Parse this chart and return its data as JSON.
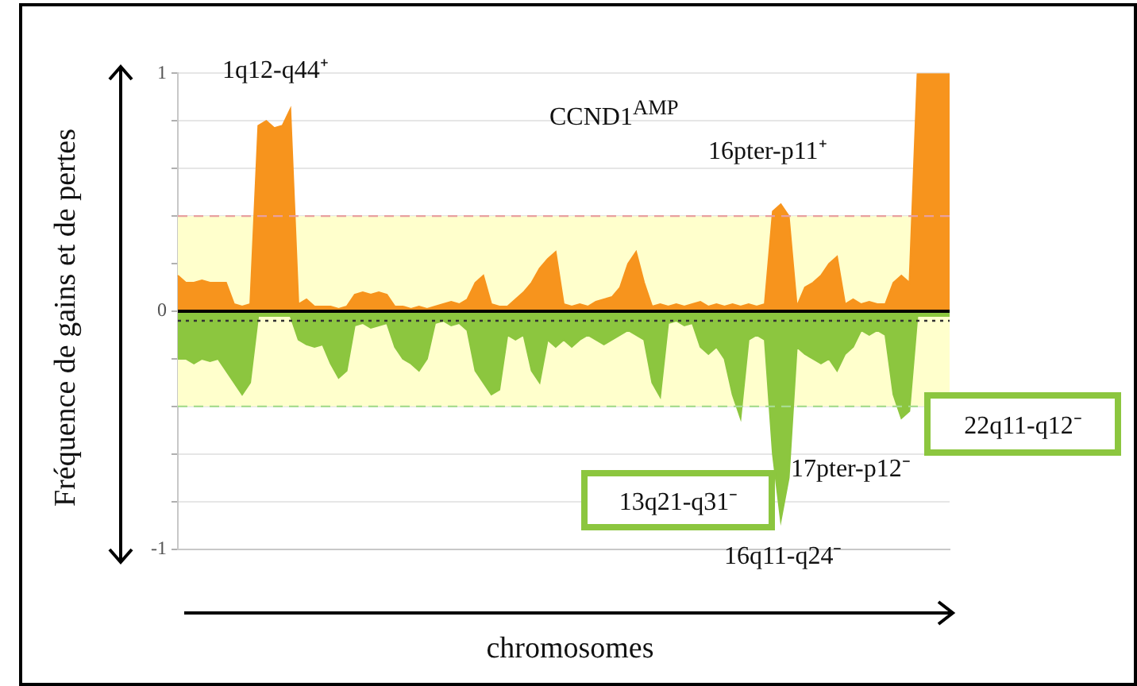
{
  "chart_data": {
    "type": "area",
    "ylabel": "Fréquence de gains et de pertes",
    "xlabel": "chromosomes",
    "categories": [
      null,
      null,
      null,
      null,
      null,
      null,
      null,
      null,
      null,
      null,
      null,
      null,
      null,
      null,
      null,
      null,
      null,
      null,
      null,
      null,
      null,
      null,
      null,
      null,
      null,
      null,
      null,
      null,
      null,
      null,
      null,
      null,
      null,
      null,
      null,
      null,
      null,
      null,
      null,
      null,
      null,
      null,
      null,
      null,
      null,
      null,
      null,
      null,
      null,
      null,
      null,
      null,
      null,
      null,
      null,
      null,
      null,
      null,
      null,
      null,
      null,
      null,
      null,
      null,
      null,
      null,
      null,
      null,
      null,
      null,
      null,
      null,
      null,
      null,
      null,
      null,
      null,
      null,
      null,
      null,
      null,
      null,
      null,
      null,
      null,
      null,
      null,
      null,
      null,
      null,
      null,
      null,
      null,
      null,
      null,
      null,
      null
    ],
    "series": [
      {
        "color": "#f7941d",
        "values": [
          0.15,
          0.12,
          0.12,
          0.13,
          0.12,
          0.12,
          0.12,
          0.03,
          0.02,
          0.03,
          0.78,
          0.8,
          0.77,
          0.78,
          0.85,
          0.03,
          0.05,
          0.02,
          0.02,
          0.02,
          0.01,
          0.02,
          0.07,
          0.08,
          0.07,
          0.08,
          0.07,
          0.02,
          0.02,
          0.01,
          0.02,
          0.01,
          0.02,
          0.03,
          0.04,
          0.03,
          0.05,
          0.12,
          0.15,
          0.03,
          0.02,
          0.02,
          0.05,
          0.08,
          0.12,
          0.18,
          0.22,
          0.25,
          0.03,
          0.02,
          0.03,
          0.02,
          0.04,
          0.05,
          0.06,
          0.1,
          0.2,
          0.25,
          0.12,
          0.02,
          0.03,
          0.02,
          0.03,
          0.02,
          0.03,
          0.04,
          0.02,
          0.03,
          0.02,
          0.03,
          0.02,
          0.03,
          0.02,
          0.03,
          0.42,
          0.45,
          0.4,
          0.02,
          0.1,
          0.12,
          0.15,
          0.2,
          0.23,
          0.03,
          0.05,
          0.03,
          0.04,
          0.03,
          0.03,
          0.12,
          0.15,
          0.12,
          1,
          1,
          1,
          1,
          1
        ]
      },
      {
        "color": "#8cc63f",
        "values": [
          -0.2,
          -0.2,
          -0.22,
          -0.2,
          -0.21,
          -0.2,
          -0.25,
          -0.3,
          -0.35,
          -0.3,
          -0.02,
          -0.02,
          -0.02,
          -0.02,
          -0.02,
          -0.12,
          -0.14,
          -0.15,
          -0.14,
          -0.22,
          -0.28,
          -0.25,
          -0.06,
          -0.05,
          -0.07,
          -0.06,
          -0.05,
          -0.15,
          -0.2,
          -0.22,
          -0.25,
          -0.2,
          -0.05,
          -0.04,
          -0.06,
          -0.05,
          -0.08,
          -0.25,
          -0.3,
          -0.35,
          -0.33,
          -0.1,
          -0.12,
          -0.1,
          -0.25,
          -0.3,
          -0.12,
          -0.15,
          -0.12,
          -0.15,
          -0.12,
          -0.1,
          -0.12,
          -0.14,
          -0.12,
          -0.1,
          -0.08,
          -0.1,
          -0.12,
          -0.3,
          -0.36,
          -0.05,
          -0.04,
          -0.06,
          -0.05,
          -0.15,
          -0.18,
          -0.15,
          -0.2,
          -0.35,
          -0.45,
          -0.12,
          -0.1,
          -0.12,
          -0.6,
          -0.88,
          -0.7,
          -0.15,
          -0.18,
          -0.2,
          -0.22,
          -0.2,
          -0.25,
          -0.18,
          -0.15,
          -0.08,
          -0.1,
          -0.08,
          -0.1,
          -0.35,
          -0.45,
          -0.42,
          -0.02,
          -0.02,
          -0.02,
          -0.02,
          -0.02
        ]
      }
    ],
    "ylim": [
      -1,
      1
    ],
    "yticks": [
      -1,
      {
        "value": -0.8,
        "label": null
      },
      {
        "value": -0.6,
        "label": null
      },
      {
        "value": -0.4,
        "label": null
      },
      {
        "value": -0.2,
        "label": null
      },
      0,
      {
        "value": 0.2,
        "label": null
      },
      {
        "value": 0.4,
        "label": null
      },
      {
        "value": 0.6,
        "label": null
      },
      {
        "value": 0.8,
        "label": null
      },
      1
    ],
    "grid": "y",
    "tick_labels": "y",
    "legend": false,
    "bands": [
      {
        "axis": "y",
        "from": -0.4,
        "to": 0.4,
        "color": "#ffffcc"
      }
    ],
    "ref_lines": [
      {
        "axis": "y",
        "value": 0.4,
        "color": "#e8a0a0",
        "line_style": "dashed"
      },
      {
        "axis": "y",
        "value": -0.4,
        "color": "#a8dc90",
        "line_style": "dashed"
      },
      {
        "axis": "y",
        "value": 0,
        "color": "#000000",
        "line_style": "solid"
      },
      {
        "axis": "y",
        "value": -0.04,
        "color": "#333333",
        "line_style": "dotted"
      }
    ],
    "annotations": [
      "1q12-q44⁺",
      "CCND1$^{AMP}$",
      "16pter-p11⁺",
      "13q21-q31⁻",
      "17pter-p12⁻",
      "16q11-q24⁻",
      "22q11-q12⁻"
    ]
  }
}
